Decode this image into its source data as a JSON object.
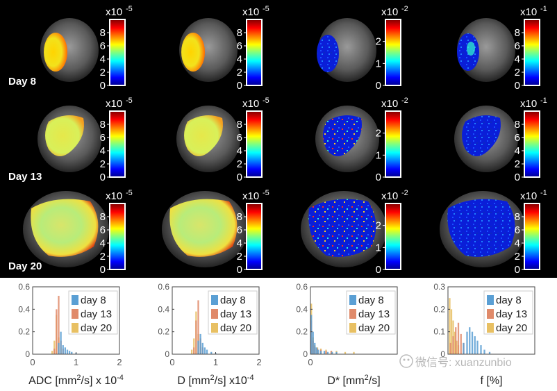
{
  "rows": [
    {
      "label": "Day 8"
    },
    {
      "label": "Day 13"
    },
    {
      "label": "Day 20"
    }
  ],
  "colorbars": [
    {
      "exponent_base": "x10",
      "exponent": "-5",
      "ticks": [
        "0",
        "2",
        "4",
        "6",
        "8"
      ]
    },
    {
      "exponent_base": "x10",
      "exponent": "-5",
      "ticks": [
        "0",
        "2",
        "4",
        "6",
        "8"
      ]
    },
    {
      "exponent_base": "x10",
      "exponent": "-2",
      "ticks": [
        "0",
        "1",
        "2"
      ]
    },
    {
      "exponent_base": "x10",
      "exponent": "-1",
      "ticks": [
        "0",
        "2",
        "4",
        "6",
        "8"
      ]
    }
  ],
  "histograms": [
    {
      "name": "adc",
      "xlabel_main": "ADC [mm",
      "xlabel_sup": "2",
      "xlabel_rest": "/s] x 10",
      "xlabel_exp": "-4",
      "yticks": [
        "0",
        "0.2",
        "0.4",
        "0.6"
      ],
      "xticks": [
        "0",
        "1",
        "2"
      ],
      "ymax": 0.6
    },
    {
      "name": "d",
      "xlabel_main": "D [mm",
      "xlabel_sup": "2",
      "xlabel_rest": "/s] x10",
      "xlabel_exp": "-4",
      "yticks": [
        "0",
        "0.2",
        "0.4",
        "0.6"
      ],
      "xticks": [
        "0",
        "1",
        "2"
      ],
      "ymax": 0.6
    },
    {
      "name": "dstar",
      "xlabel_main": "D* [mm",
      "xlabel_sup": "2",
      "xlabel_rest": "/s]",
      "xlabel_exp": "",
      "yticks": [
        "0",
        "0.2",
        "0.4",
        "0.6"
      ],
      "xticks": [
        "0"
      ],
      "ymax": 0.6
    },
    {
      "name": "f",
      "xlabel_main": "f [%]",
      "xlabel_sup": "",
      "xlabel_rest": "",
      "xlabel_exp": "",
      "yticks": [
        "0",
        "0.1",
        "0.2",
        "0.3"
      ],
      "xticks": [],
      "ymax": 0.3
    }
  ],
  "legend": {
    "entries": [
      {
        "label": "day 8",
        "color": "#5a9fd4"
      },
      {
        "label": "day 13",
        "color": "#e08a6a"
      },
      {
        "label": "day 20",
        "color": "#e8c063"
      }
    ]
  },
  "watermark": {
    "text": "微信号: xuanzunbio"
  },
  "chart_data": [
    {
      "type": "bar",
      "title": "",
      "xlabel": "ADC [mm2/s] x 10-4",
      "ylabel": "",
      "xlim": [
        0,
        2
      ],
      "ylim": [
        0,
        0.6
      ],
      "series": [
        {
          "name": "day 8",
          "bins": [
            [
              0.6,
              0.1
            ],
            [
              0.65,
              0.2
            ],
            [
              0.7,
              0.08
            ],
            [
              0.75,
              0.06
            ],
            [
              0.8,
              0.04
            ],
            [
              0.85,
              0.03
            ],
            [
              0.9,
              0.02
            ],
            [
              1.0,
              0.01
            ]
          ]
        },
        {
          "name": "day 13",
          "bins": [
            [
              0.5,
              0.05
            ],
            [
              0.55,
              0.4
            ],
            [
              0.6,
              0.52
            ],
            [
              0.65,
              0.12
            ],
            [
              0.7,
              0.05
            ]
          ]
        },
        {
          "name": "day 20",
          "bins": [
            [
              0.45,
              0.03
            ],
            [
              0.5,
              0.12
            ],
            [
              0.55,
              0.35
            ],
            [
              0.6,
              0.15
            ],
            [
              0.65,
              0.06
            ]
          ]
        }
      ]
    },
    {
      "type": "bar",
      "title": "",
      "xlabel": "D [mm2/s] x10-4",
      "ylabel": "",
      "xlim": [
        0,
        2
      ],
      "ylim": [
        0,
        0.6
      ],
      "series": [
        {
          "name": "day 8",
          "bins": [
            [
              0.6,
              0.12
            ],
            [
              0.65,
              0.18
            ],
            [
              0.7,
              0.1
            ],
            [
              0.75,
              0.06
            ],
            [
              0.8,
              0.04
            ],
            [
              0.9,
              0.02
            ],
            [
              1.0,
              0.01
            ]
          ]
        },
        {
          "name": "day 13",
          "bins": [
            [
              0.5,
              0.06
            ],
            [
              0.55,
              0.3
            ],
            [
              0.6,
              0.48
            ],
            [
              0.65,
              0.14
            ],
            [
              0.7,
              0.06
            ]
          ]
        },
        {
          "name": "day 20",
          "bins": [
            [
              0.45,
              0.04
            ],
            [
              0.5,
              0.14
            ],
            [
              0.55,
              0.38
            ],
            [
              0.6,
              0.18
            ],
            [
              0.65,
              0.07
            ]
          ]
        }
      ]
    },
    {
      "type": "bar",
      "title": "",
      "xlabel": "D* [mm2/s]",
      "ylabel": "",
      "xlim": [
        0,
        0.1
      ],
      "ylim": [
        0,
        0.6
      ],
      "series": [
        {
          "name": "day 8",
          "bins": [
            [
              0.001,
              0.35
            ],
            [
              0.003,
              0.2
            ],
            [
              0.005,
              0.1
            ],
            [
              0.007,
              0.06
            ],
            [
              0.009,
              0.04
            ],
            [
              0.012,
              0.03
            ],
            [
              0.016,
              0.03
            ],
            [
              0.02,
              0.02
            ],
            [
              0.025,
              0.02
            ],
            [
              0.03,
              0.02
            ]
          ]
        },
        {
          "name": "day 13",
          "bins": [
            [
              0.001,
              0.3
            ],
            [
              0.003,
              0.12
            ],
            [
              0.005,
              0.07
            ],
            [
              0.008,
              0.05
            ],
            [
              0.012,
              0.04
            ],
            [
              0.018,
              0.03
            ],
            [
              0.024,
              0.03
            ]
          ]
        },
        {
          "name": "day 20",
          "bins": [
            [
              0.001,
              0.45
            ],
            [
              0.003,
              0.15
            ],
            [
              0.005,
              0.08
            ],
            [
              0.008,
              0.06
            ],
            [
              0.012,
              0.05
            ],
            [
              0.018,
              0.04
            ],
            [
              0.024,
              0.03
            ],
            [
              0.03,
              0.03
            ],
            [
              0.04,
              0.02
            ],
            [
              0.05,
              0.02
            ]
          ]
        }
      ]
    },
    {
      "type": "bar",
      "title": "",
      "xlabel": "f [%]",
      "ylabel": "",
      "xlim": [
        0,
        1
      ],
      "ylim": [
        0,
        0.3
      ],
      "series": [
        {
          "name": "day 8",
          "bins": [
            [
              0.18,
              0.05
            ],
            [
              0.22,
              0.1
            ],
            [
              0.25,
              0.12
            ],
            [
              0.28,
              0.1
            ],
            [
              0.31,
              0.08
            ],
            [
              0.34,
              0.06
            ],
            [
              0.38,
              0.04
            ],
            [
              0.42,
              0.02
            ],
            [
              0.48,
              0.01
            ]
          ]
        },
        {
          "name": "day 13",
          "bins": [
            [
              0.03,
              0.05
            ],
            [
              0.06,
              0.08
            ],
            [
              0.09,
              0.12
            ],
            [
              0.12,
              0.14
            ],
            [
              0.15,
              0.09
            ],
            [
              0.18,
              0.05
            ]
          ]
        },
        {
          "name": "day 20",
          "bins": [
            [
              0.02,
              0.25
            ],
            [
              0.04,
              0.2
            ],
            [
              0.06,
              0.15
            ],
            [
              0.08,
              0.1
            ],
            [
              0.1,
              0.06
            ],
            [
              0.12,
              0.04
            ]
          ]
        }
      ]
    }
  ]
}
